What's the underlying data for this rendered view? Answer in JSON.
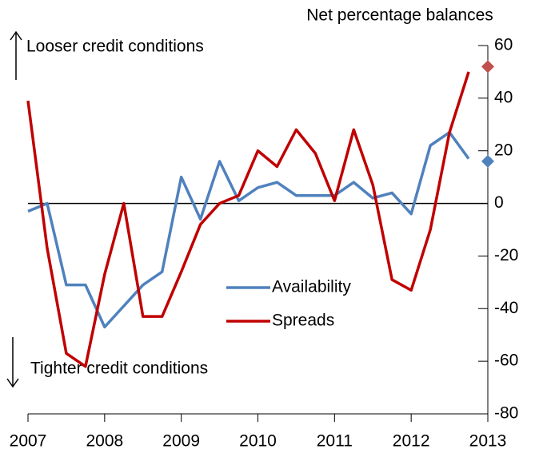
{
  "chart_data": {
    "type": "line",
    "title": "Net percentage balances",
    "annotations": [
      "Looser credit conditions",
      "Tighter credit conditions"
    ],
    "x": [
      2007,
      2007.25,
      2007.5,
      2007.75,
      2008,
      2008.25,
      2008.5,
      2008.75,
      2009,
      2009.25,
      2009.5,
      2009.75,
      2010,
      2010.25,
      2010.5,
      2010.75,
      2011,
      2011.25,
      2011.5,
      2011.75,
      2012,
      2012.25,
      2012.5,
      2012.75
    ],
    "series": [
      {
        "name": "Availability",
        "color": "#4f81bd",
        "values": [
          -3,
          0,
          -31,
          -31,
          -47,
          -39,
          -31,
          -26,
          10,
          -6,
          16,
          1,
          6,
          8,
          3,
          3,
          3,
          8,
          2,
          4,
          -4,
          22,
          27,
          17
        ],
        "marker_x": 2013,
        "marker_value": 16,
        "marker_color": "#4f81bd"
      },
      {
        "name": "Spreads",
        "color": "#c00000",
        "values": [
          39,
          -17,
          -57,
          -62,
          -27,
          0,
          -43,
          -43,
          -26,
          -8,
          0,
          3,
          20,
          14,
          28,
          19,
          1,
          28,
          7,
          -29,
          -33,
          -10,
          27,
          50
        ],
        "marker_x": 2013,
        "marker_value": 52,
        "marker_color": "#c0504d"
      }
    ],
    "xlim": [
      2007,
      2013
    ],
    "xticks": [
      2007,
      2008,
      2009,
      2010,
      2011,
      2012,
      2013
    ],
    "ylim": [
      -80,
      60
    ],
    "yticks": [
      -80,
      -60,
      -40,
      -20,
      0,
      20,
      40,
      60
    ],
    "zero_line": 0,
    "grid": false
  }
}
